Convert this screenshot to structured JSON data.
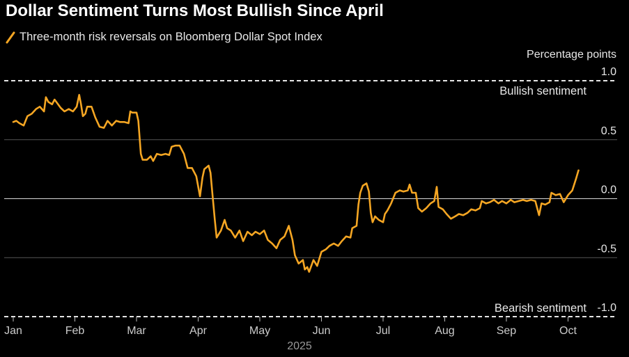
{
  "chart_data": {
    "type": "line",
    "title": "Dollar Sentiment Turns Most Bullish Since April",
    "ylabel": "Percentage points",
    "xlabel": "2025",
    "ylim": [
      -1.0,
      1.0
    ],
    "yticks": [
      1.0,
      0.5,
      0.0,
      -0.5,
      -1.0
    ],
    "ytick_labels": [
      "1.0",
      "0.5",
      "0.0",
      "-0.5",
      "-1.0"
    ],
    "xlim": [
      1.0,
      10.3
    ],
    "x_ticks": [
      {
        "label": "Jan",
        "x": 1.0
      },
      {
        "label": "Feb",
        "x": 2.0
      },
      {
        "label": "Mar",
        "x": 3.0
      },
      {
        "label": "Apr",
        "x": 4.0
      },
      {
        "label": "May",
        "x": 5.0
      },
      {
        "label": "Jun",
        "x": 6.0
      },
      {
        "label": "Jul",
        "x": 7.0
      },
      {
        "label": "Aug",
        "x": 8.0
      },
      {
        "label": "Sep",
        "x": 9.0
      },
      {
        "label": "Oct",
        "x": 10.0
      }
    ],
    "grid": true,
    "legend_position": "top-left",
    "annotations": [
      {
        "text": "Bullish sentiment",
        "y": 1.0
      },
      {
        "text": "Bearish sentiment",
        "y": -1.0
      }
    ],
    "series": [
      {
        "name": "Three-month risk reversals on Bloomberg Dollar Spot Index",
        "color": "#f5a623",
        "points": [
          [
            1.0,
            0.65
          ],
          [
            1.05,
            0.66
          ],
          [
            1.1,
            0.64
          ],
          [
            1.17,
            0.62
          ],
          [
            1.23,
            0.7
          ],
          [
            1.3,
            0.72
          ],
          [
            1.37,
            0.76
          ],
          [
            1.43,
            0.78
          ],
          [
            1.5,
            0.74
          ],
          [
            1.53,
            0.86
          ],
          [
            1.57,
            0.82
          ],
          [
            1.63,
            0.8
          ],
          [
            1.67,
            0.84
          ],
          [
            1.7,
            0.82
          ],
          [
            1.77,
            0.77
          ],
          [
            1.83,
            0.74
          ],
          [
            1.9,
            0.76
          ],
          [
            1.97,
            0.74
          ],
          [
            2.03,
            0.78
          ],
          [
            2.07,
            0.88
          ],
          [
            2.1,
            0.8
          ],
          [
            2.13,
            0.7
          ],
          [
            2.17,
            0.72
          ],
          [
            2.2,
            0.78
          ],
          [
            2.27,
            0.78
          ],
          [
            2.33,
            0.69
          ],
          [
            2.4,
            0.61
          ],
          [
            2.47,
            0.6
          ],
          [
            2.53,
            0.66
          ],
          [
            2.6,
            0.62
          ],
          [
            2.67,
            0.66
          ],
          [
            2.73,
            0.65
          ],
          [
            2.8,
            0.65
          ],
          [
            2.87,
            0.64
          ],
          [
            2.9,
            0.74
          ],
          [
            2.93,
            0.73
          ],
          [
            3.0,
            0.73
          ],
          [
            3.03,
            0.66
          ],
          [
            3.07,
            0.38
          ],
          [
            3.1,
            0.33
          ],
          [
            3.17,
            0.33
          ],
          [
            3.23,
            0.36
          ],
          [
            3.27,
            0.32
          ],
          [
            3.33,
            0.38
          ],
          [
            3.4,
            0.37
          ],
          [
            3.47,
            0.38
          ],
          [
            3.53,
            0.37
          ],
          [
            3.57,
            0.44
          ],
          [
            3.63,
            0.45
          ],
          [
            3.7,
            0.45
          ],
          [
            3.77,
            0.38
          ],
          [
            3.83,
            0.26
          ],
          [
            3.9,
            0.26
          ],
          [
            3.97,
            0.19
          ],
          [
            4.03,
            0.02
          ],
          [
            4.07,
            0.18
          ],
          [
            4.1,
            0.25
          ],
          [
            4.17,
            0.28
          ],
          [
            4.2,
            0.22
          ],
          [
            4.23,
            0.05
          ],
          [
            4.27,
            -0.18
          ],
          [
            4.3,
            -0.33
          ],
          [
            4.37,
            -0.27
          ],
          [
            4.43,
            -0.18
          ],
          [
            4.47,
            -0.25
          ],
          [
            4.53,
            -0.27
          ],
          [
            4.6,
            -0.33
          ],
          [
            4.67,
            -0.27
          ],
          [
            4.73,
            -0.36
          ],
          [
            4.8,
            -0.28
          ],
          [
            4.87,
            -0.31
          ],
          [
            4.93,
            -0.28
          ],
          [
            5.0,
            -0.3
          ],
          [
            5.07,
            -0.27
          ],
          [
            5.13,
            -0.35
          ],
          [
            5.2,
            -0.38
          ],
          [
            5.27,
            -0.42
          ],
          [
            5.33,
            -0.35
          ],
          [
            5.4,
            -0.32
          ],
          [
            5.47,
            -0.23
          ],
          [
            5.53,
            -0.35
          ],
          [
            5.57,
            -0.48
          ],
          [
            5.63,
            -0.55
          ],
          [
            5.7,
            -0.52
          ],
          [
            5.73,
            -0.6
          ],
          [
            5.77,
            -0.58
          ],
          [
            5.8,
            -0.62
          ],
          [
            5.87,
            -0.52
          ],
          [
            5.93,
            -0.57
          ],
          [
            6.0,
            -0.45
          ],
          [
            6.07,
            -0.43
          ],
          [
            6.13,
            -0.4
          ],
          [
            6.2,
            -0.38
          ],
          [
            6.27,
            -0.4
          ],
          [
            6.33,
            -0.36
          ],
          [
            6.4,
            -0.32
          ],
          [
            6.47,
            -0.33
          ],
          [
            6.5,
            -0.25
          ],
          [
            6.57,
            -0.23
          ],
          [
            6.6,
            -0.05
          ],
          [
            6.63,
            0.05
          ],
          [
            6.67,
            0.11
          ],
          [
            6.73,
            0.13
          ],
          [
            6.77,
            0.06
          ],
          [
            6.8,
            -0.12
          ],
          [
            6.83,
            -0.2
          ],
          [
            6.87,
            -0.15
          ],
          [
            6.93,
            -0.18
          ],
          [
            7.0,
            -0.2
          ],
          [
            7.03,
            -0.13
          ],
          [
            7.07,
            -0.1
          ],
          [
            7.13,
            -0.04
          ],
          [
            7.2,
            0.05
          ],
          [
            7.27,
            0.07
          ],
          [
            7.33,
            0.06
          ],
          [
            7.4,
            0.07
          ],
          [
            7.43,
            0.12
          ],
          [
            7.47,
            0.05
          ],
          [
            7.53,
            0.05
          ],
          [
            7.57,
            -0.08
          ],
          [
            7.63,
            -0.11
          ],
          [
            7.7,
            -0.08
          ],
          [
            7.77,
            -0.04
          ],
          [
            7.83,
            -0.02
          ],
          [
            7.87,
            0.1
          ],
          [
            7.9,
            -0.07
          ],
          [
            7.97,
            -0.09
          ],
          [
            8.03,
            -0.13
          ],
          [
            8.1,
            -0.17
          ],
          [
            8.17,
            -0.15
          ],
          [
            8.23,
            -0.13
          ],
          [
            8.3,
            -0.14
          ],
          [
            8.37,
            -0.12
          ],
          [
            8.43,
            -0.09
          ],
          [
            8.5,
            -0.1
          ],
          [
            8.57,
            -0.08
          ],
          [
            8.6,
            -0.02
          ],
          [
            8.67,
            -0.04
          ],
          [
            8.73,
            -0.03
          ],
          [
            8.8,
            -0.01
          ],
          [
            8.87,
            -0.04
          ],
          [
            8.93,
            -0.02
          ],
          [
            9.0,
            -0.04
          ],
          [
            9.07,
            -0.01
          ],
          [
            9.13,
            -0.03
          ],
          [
            9.2,
            -0.02
          ],
          [
            9.27,
            -0.01
          ],
          [
            9.33,
            -0.02
          ],
          [
            9.4,
            -0.01
          ],
          [
            9.47,
            -0.02
          ],
          [
            9.53,
            -0.14
          ],
          [
            9.57,
            -0.04
          ],
          [
            9.63,
            -0.05
          ],
          [
            9.7,
            -0.03
          ],
          [
            9.73,
            0.05
          ],
          [
            9.8,
            0.03
          ],
          [
            9.87,
            0.04
          ],
          [
            9.93,
            -0.03
          ],
          [
            10.0,
            0.03
          ],
          [
            10.07,
            0.07
          ],
          [
            10.13,
            0.17
          ],
          [
            10.17,
            0.24
          ]
        ]
      }
    ]
  }
}
